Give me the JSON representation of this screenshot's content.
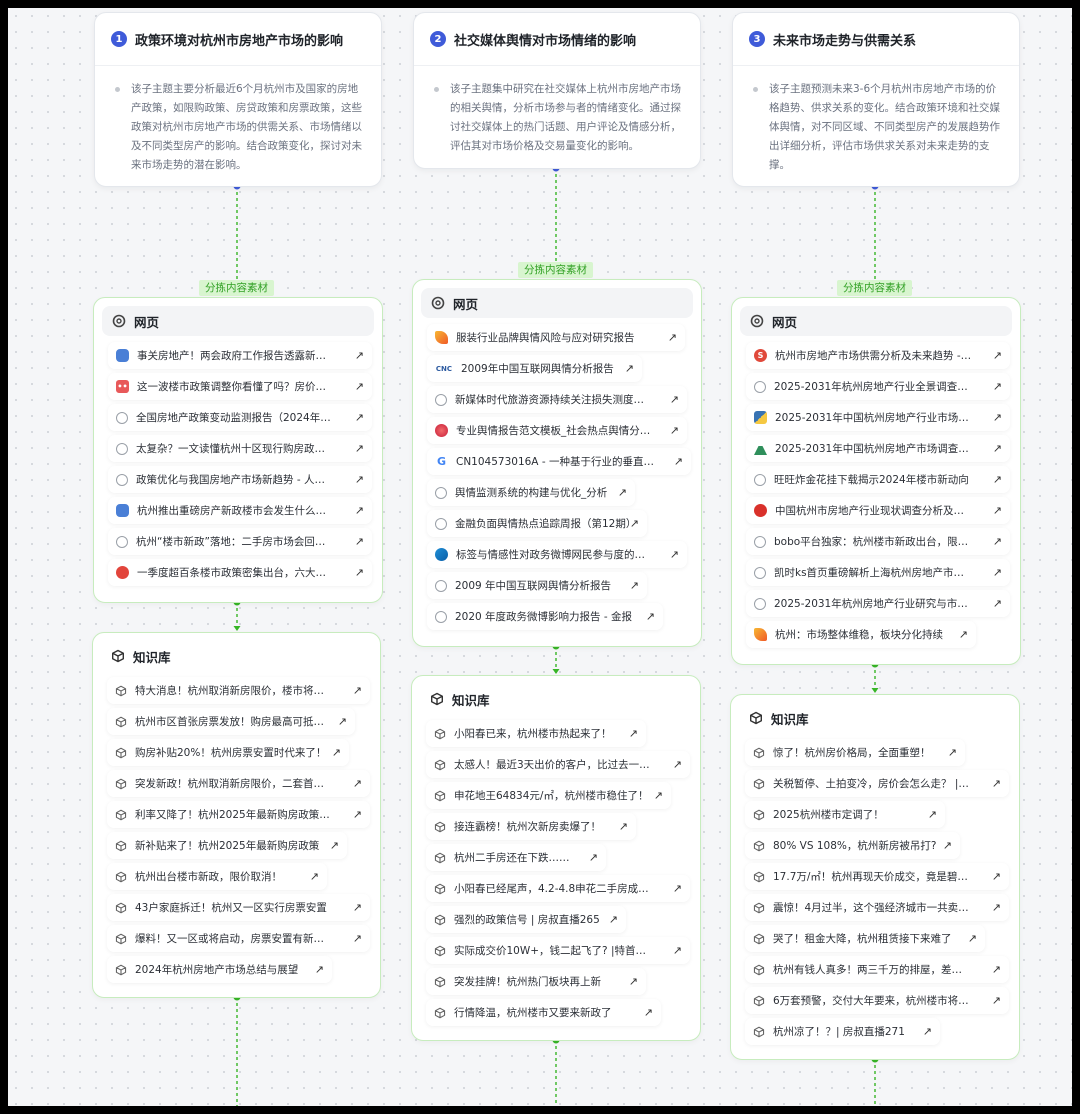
{
  "tag_label": "分拣内容素材",
  "topics": [
    {
      "number": "1",
      "title": "政策环境对杭州市房地产市场的影响",
      "description": "该子主题主要分析最近6个月杭州市及国家的房地产政策，如限购政策、房贷政策和房票政策，这些政策对杭州市房地产市场的供需关系、市场情绪以及不同类型房产的影响。结合政策变化，探讨对未来市场走势的潜在影响。"
    },
    {
      "number": "2",
      "title": "社交媒体舆情对市场情绪的影响",
      "description": "该子主题集中研究在社交媒体上杭州市房地产市场的相关舆情，分析市场参与者的情绪变化。通过探讨社交媒体上的热门话题、用户评论及情感分析，评估其对市场价格及交易量变化的影响。"
    },
    {
      "number": "3",
      "title": "未来市场走势与供需关系",
      "description": "该子主题预测未来3-6个月杭州市房地产市场的价格趋势、供求关系的变化。结合政策环境和社交媒体舆情，对不同区域、不同类型房产的发展趋势作出详细分析，评估市场供求关系对未来走势的支撑。"
    }
  ],
  "web_cards": [
    {
      "title": "网页",
      "items": [
        {
          "text": "事关房地产！两会政府工作报告透露新…",
          "icon": "blue-cloud"
        },
        {
          "text": "这一波楼市政策调整你看懂了吗？房价…",
          "icon": "red-eyes"
        },
        {
          "text": "全国房地产政策变动监测报告（2024年…",
          "icon": "generic"
        },
        {
          "text": "太复杂？一文读懂杭州十区现行购房政…",
          "icon": "generic"
        },
        {
          "text": "政策优化与我国房地产市场新趋势 - 人…",
          "icon": "generic"
        },
        {
          "text": "杭州推出重磅房产新政楼市会发生什么…",
          "icon": "blue-cloud"
        },
        {
          "text": "杭州“楼市新政”落地：二手房市场会回…",
          "icon": "generic"
        },
        {
          "text": "一季度超百条楼市政策密集出台，六大…",
          "icon": "red-blob"
        }
      ]
    },
    {
      "title": "网页",
      "items": [
        {
          "text": "服装行业品牌舆情风险与应对研究报告",
          "icon": "orange-bird"
        },
        {
          "text": "2009年中国互联网舆情分析报告",
          "icon": "cnnic"
        },
        {
          "text": "新媒体时代旅游资源持续关注损失测度…",
          "icon": "generic"
        },
        {
          "text": "专业舆情报告范文模板_社会热点舆情分…",
          "icon": "red-swirl"
        },
        {
          "text": "CN104573016A - 一种基于行业的垂直…",
          "icon": "google"
        },
        {
          "text": "舆情监测系统的构建与优化_分析",
          "icon": "generic"
        },
        {
          "text": "金融负面舆情热点追踪周报（第12期）",
          "icon": "generic"
        },
        {
          "text": "标签与情感性对政务微博网民参与度的…",
          "icon": "teal-wave"
        },
        {
          "text": "2009 年中国互联网舆情分析报告",
          "icon": "generic"
        },
        {
          "text": "2020 年度政务微博影响力报告 - 金报",
          "icon": "generic"
        }
      ]
    },
    {
      "title": "网页",
      "items": [
        {
          "text": "杭州市房地产市场供需分析及未来趋势 -…",
          "icon": "red-s"
        },
        {
          "text": "2025-2031年杭州房地产行业全景调查…",
          "icon": "generic"
        },
        {
          "text": "2025-2031年中国杭州房地产行业市场…",
          "icon": "python"
        },
        {
          "text": "2025-2031年中国杭州房地产市场调查…",
          "icon": "green-mountain"
        },
        {
          "text": "旺旺炸金花挂下载揭示2024年楼市新动向",
          "icon": "generic"
        },
        {
          "text": "中国杭州市房地产行业现状调查分析及…",
          "icon": "red-flower"
        },
        {
          "text": "bobo平台独家：杭州楼市新政出台，限…",
          "icon": "generic"
        },
        {
          "text": "凯时ks首页重磅解析上海杭州房地产市…",
          "icon": "generic"
        },
        {
          "text": "2025-2031年杭州房地产行业研究与市…",
          "icon": "generic"
        },
        {
          "text": "杭州：市场整体维稳，板块分化持续",
          "icon": "orange-bird"
        }
      ]
    }
  ],
  "kb_cards": [
    {
      "title": "知识库",
      "items": [
        "特大消息！杭州取消新房限价，楼市将…",
        "杭州市区首张房票发放！购房最高可抵…",
        "购房补贴20%！杭州房票安置时代来了！",
        "突发新政！杭州取消新房限价，二套首…",
        "利率又降了！杭州2025年最新购房政策…",
        "新补贴来了！杭州2025年最新购房政策",
        "杭州出台楼市新政，限价取消！",
        "43户家庭拆迁！杭州又一区实行房票安置",
        "爆料！又一区或将启动，房票安置有新…",
        "2024年杭州房地产市场总结与展望"
      ]
    },
    {
      "title": "知识库",
      "items": [
        "小阳春已来，杭州楼市热起来了！",
        "太感人！最近3天出价的客户，比过去一…",
        "申花地王64834元/㎡，杭州楼市稳住了！",
        "接连霸榜！杭州次新房卖爆了！",
        "杭州二手房还在下跌……",
        "小阳春已经尾声，4.2-4.8申花二手房成…",
        "强烈的政策信号 | 房叔直播265",
        "实际成交价10W+，钱二起飞了? |特首…",
        "突发挂牌！杭州热门板块再上新",
        "行情降温，杭州楼市又要来新政了"
      ]
    },
    {
      "title": "知识库",
      "items": [
        "惊了！杭州房价格局，全面重塑！",
        "关税暂停、土拍变冷，房价会怎么走？ |…",
        "2025杭州楼市定调了！",
        "80% VS 108%，杭州新房被吊打?",
        "17.7万/㎡！杭州再现天价成交，竟是碧…",
        "震惊！4月过半，这个强经济城市一共卖…",
        "哭了！租金大降，杭州租赁接下来难了",
        "杭州有钱人真多！两三千万的排屋，差…",
        "6万套预警，交付大年要来，杭州楼市将…",
        "杭州凉了！？| 房叔直播271"
      ]
    }
  ],
  "colors": {
    "accent": "#3f5bd9",
    "connector_top": "#3f5bd9",
    "connector": "#37b526",
    "tag_bg": "#d8f5cf",
    "tag_text": "#33a126",
    "card_border": "#c7ecbe"
  }
}
